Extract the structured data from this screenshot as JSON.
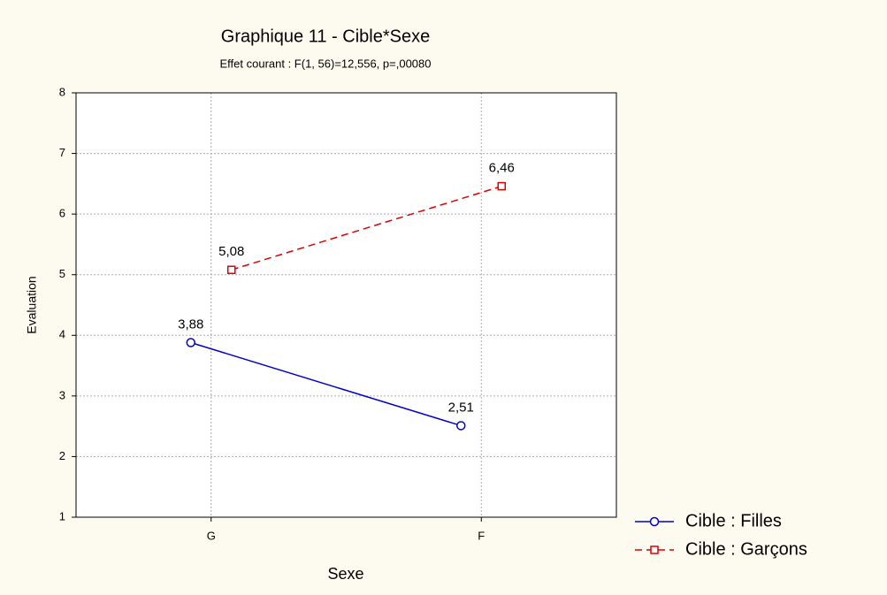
{
  "chart_data": {
    "type": "line",
    "title": "Graphique 11 - Cible*Sexe",
    "subtitle": "Effet courant : F(1, 56)=12,556, p=,00080",
    "x_label": "Sexe",
    "y_label": "Evaluation",
    "categories": [
      "G",
      "F"
    ],
    "series": [
      {
        "name": "Cible : Filles",
        "color": "#0000cc",
        "marker": "circle",
        "line_style": "solid",
        "values": [
          3.88,
          2.51
        ],
        "value_labels": [
          "3,88",
          "2,51"
        ]
      },
      {
        "name": "Cible : Garçons",
        "color": "#dd0000",
        "marker": "square",
        "line_style": "dashed",
        "values": [
          5.08,
          6.46
        ],
        "value_labels": [
          "5,08",
          "6,46"
        ]
      }
    ],
    "ylim": [
      1,
      8
    ],
    "yticks": [
      1,
      2,
      3,
      4,
      5,
      6,
      7,
      8
    ],
    "grid": true,
    "legend": "bottom-right"
  }
}
